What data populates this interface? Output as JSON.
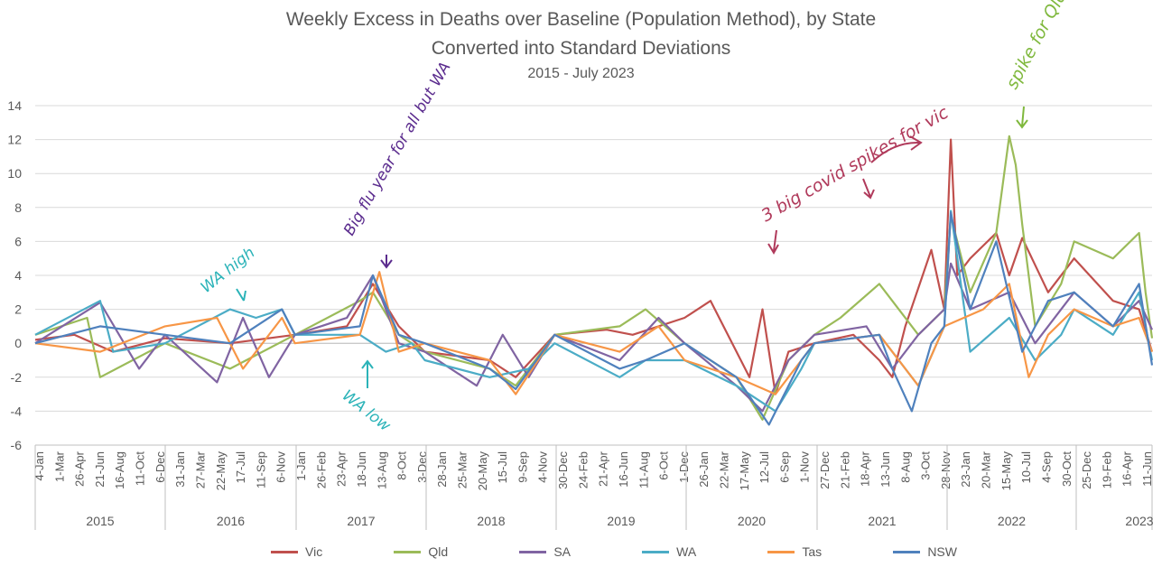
{
  "chart_data": {
    "type": "line",
    "title": "Weekly Excess in Deaths over Baseline (Population Method), by State",
    "subtitle": "Converted into Standard Deviations",
    "subtitle2": "2015 - July 2023",
    "ylim": [
      -6,
      14
    ],
    "yticks": [
      "14",
      "12",
      "10",
      "8",
      "6",
      "4",
      "2",
      "0",
      "-2",
      "-4",
      "-6"
    ],
    "grid": true,
    "legend_position": "bottom",
    "years": [
      "2015",
      "2016",
      "2017",
      "2018",
      "2019",
      "2020",
      "2021",
      "2022",
      "2023"
    ],
    "x_ticks": [
      "4-Jan",
      "1-Mar",
      "26-Apr",
      "21-Jun",
      "16-Aug",
      "11-Oct",
      "6-Dec",
      "31-Jan",
      "27-Mar",
      "22-May",
      "17-Jul",
      "11-Sep",
      "6-Nov",
      "1-Jan",
      "26-Feb",
      "23-Apr",
      "18-Jun",
      "13-Aug",
      "8-Oct",
      "3-Dec",
      "28-Jan",
      "25-Mar",
      "20-May",
      "15-Jul",
      "9-Sep",
      "4-Nov",
      "30-Dec",
      "24-Feb",
      "21-Apr",
      "16-Jun",
      "11-Aug",
      "6-Oct",
      "1-Dec",
      "26-Jan",
      "22-Mar",
      "17-May",
      "12-Jul",
      "6-Sep",
      "1-Nov",
      "27-Dec",
      "21-Feb",
      "18-Apr",
      "13-Jun",
      "8-Aug",
      "3-Oct",
      "28-Nov",
      "23-Jan",
      "20-Mar",
      "15-May",
      "10-Jul",
      "4-Sep",
      "30-Oct",
      "25-Dec",
      "19-Feb",
      "16-Apr",
      "11-Jun"
    ],
    "series": [
      {
        "name": "Vic",
        "color": "#C0504D",
        "x": [
          2015.0,
          2015.3,
          2015.6,
          2016.0,
          2016.5,
          2017.0,
          2017.4,
          2017.6,
          2017.8,
          2018.0,
          2018.5,
          2018.7,
          2019.0,
          2019.4,
          2019.6,
          2020.0,
          2020.2,
          2020.5,
          2020.6,
          2020.7,
          2020.8,
          2021.0,
          2021.3,
          2021.5,
          2021.6,
          2021.7,
          2021.9,
          2022.0,
          2022.05,
          2022.1,
          2022.2,
          2022.4,
          2022.5,
          2022.6,
          2022.8,
          2023.0,
          2023.3,
          2023.5,
          2023.6
        ],
        "values": [
          0.2,
          0.5,
          -0.5,
          0.3,
          0.0,
          0.5,
          1.0,
          3.5,
          1.0,
          -0.5,
          -1.0,
          -2.0,
          0.5,
          0.8,
          0.5,
          1.5,
          2.5,
          -2.0,
          2.0,
          -3.0,
          -0.5,
          0.0,
          0.5,
          -1.0,
          -2.0,
          1.0,
          5.5,
          2.0,
          12.0,
          4.0,
          5.0,
          6.5,
          4.0,
          6.2,
          3.0,
          5.0,
          2.5,
          2.0,
          -0.5
        ]
      },
      {
        "name": "Qld",
        "color": "#9BBB59",
        "x": [
          2015.0,
          2015.4,
          2015.5,
          2016.0,
          2016.5,
          2017.0,
          2017.5,
          2017.6,
          2017.8,
          2018.0,
          2018.5,
          2018.7,
          2019.0,
          2019.5,
          2019.7,
          2020.0,
          2020.4,
          2020.6,
          2020.8,
          2021.0,
          2021.2,
          2021.5,
          2021.8,
          2022.0,
          2022.05,
          2022.2,
          2022.4,
          2022.5,
          2022.55,
          2022.6,
          2022.7,
          2022.9,
          2023.0,
          2023.3,
          2023.5,
          2023.55,
          2023.6
        ],
        "values": [
          0.5,
          1.5,
          -2.0,
          0.0,
          -1.5,
          0.5,
          2.5,
          3.0,
          0.5,
          -0.5,
          -1.5,
          -2.5,
          0.5,
          1.0,
          2.0,
          0.0,
          -2.0,
          -4.5,
          -1.0,
          0.5,
          1.5,
          3.5,
          0.5,
          2.0,
          7.5,
          3.0,
          6.5,
          12.2,
          10.5,
          7.0,
          1.0,
          3.5,
          6.0,
          5.0,
          6.5,
          3.0,
          0.3
        ]
      },
      {
        "name": "SA",
        "color": "#8064A2",
        "x": [
          2015.0,
          2015.5,
          2015.8,
          2016.0,
          2016.4,
          2016.6,
          2016.8,
          2017.0,
          2017.4,
          2017.6,
          2017.8,
          2018.0,
          2018.4,
          2018.6,
          2018.8,
          2019.0,
          2019.5,
          2019.8,
          2020.0,
          2020.4,
          2020.6,
          2020.8,
          2021.0,
          2021.4,
          2021.6,
          2021.8,
          2022.0,
          2022.05,
          2022.2,
          2022.5,
          2022.7,
          2022.9,
          2023.0,
          2023.3,
          2023.5,
          2023.6
        ],
        "values": [
          0.0,
          2.4,
          -1.5,
          0.5,
          -2.3,
          1.5,
          -2.0,
          0.5,
          1.5,
          4.0,
          0.0,
          -0.5,
          -2.5,
          0.5,
          -2.0,
          0.5,
          -1.0,
          1.5,
          0.0,
          -2.5,
          -4.0,
          -1.0,
          0.5,
          1.0,
          -1.5,
          0.5,
          2.0,
          4.7,
          2.0,
          3.0,
          0.0,
          2.0,
          3.0,
          1.0,
          2.5,
          0.8
        ]
      },
      {
        "name": "WA",
        "color": "#4BACC6",
        "x": [
          2015.0,
          2015.5,
          2015.6,
          2016.0,
          2016.5,
          2016.7,
          2016.9,
          2017.0,
          2017.5,
          2017.7,
          2017.9,
          2018.0,
          2018.5,
          2018.8,
          2019.0,
          2019.5,
          2019.7,
          2020.0,
          2020.4,
          2020.7,
          2020.9,
          2021.0,
          2021.5,
          2021.8,
          2022.0,
          2022.05,
          2022.2,
          2022.5,
          2022.7,
          2022.9,
          2023.0,
          2023.3,
          2023.5,
          2023.6
        ],
        "values": [
          0.5,
          2.5,
          -0.5,
          0.0,
          2.0,
          1.5,
          2.0,
          0.5,
          0.5,
          -0.5,
          0.0,
          -1.0,
          -2.0,
          -1.5,
          0.0,
          -2.0,
          -1.0,
          -1.0,
          -2.5,
          -4.0,
          -1.5,
          0.0,
          0.5,
          -2.5,
          1.0,
          7.8,
          -0.5,
          1.5,
          -1.0,
          0.5,
          2.0,
          0.5,
          3.0,
          -1.0
        ]
      },
      {
        "name": "Tas",
        "color": "#F79646",
        "x": [
          2015.0,
          2015.5,
          2016.0,
          2016.4,
          2016.6,
          2016.9,
          2017.0,
          2017.5,
          2017.65,
          2017.8,
          2018.0,
          2018.5,
          2018.7,
          2019.0,
          2019.5,
          2019.8,
          2020.0,
          2020.4,
          2020.7,
          2020.9,
          2021.0,
          2021.5,
          2021.8,
          2022.0,
          2022.3,
          2022.5,
          2022.65,
          2022.8,
          2023.0,
          2023.3,
          2023.5,
          2023.6
        ],
        "values": [
          0.0,
          -0.5,
          1.0,
          1.5,
          -1.5,
          1.5,
          0.0,
          0.5,
          4.2,
          -0.5,
          0.0,
          -1.0,
          -3.0,
          0.5,
          -0.5,
          1.0,
          -1.0,
          -2.0,
          -3.0,
          -1.0,
          0.0,
          0.5,
          -2.5,
          1.0,
          2.0,
          3.5,
          -2.0,
          0.5,
          2.0,
          1.0,
          1.5,
          -0.5
        ]
      },
      {
        "name": "NSW",
        "color": "#4F81BD",
        "x": [
          2015.0,
          2015.5,
          2016.0,
          2016.5,
          2016.9,
          2017.0,
          2017.5,
          2017.6,
          2017.8,
          2018.0,
          2018.5,
          2018.7,
          2019.0,
          2019.5,
          2019.7,
          2020.0,
          2020.4,
          2020.65,
          2020.9,
          2021.0,
          2021.5,
          2021.6,
          2021.75,
          2021.9,
          2022.0,
          2022.05,
          2022.2,
          2022.4,
          2022.6,
          2022.8,
          2023.0,
          2023.3,
          2023.5,
          2023.6
        ],
        "values": [
          0.0,
          1.0,
          0.5,
          0.0,
          2.0,
          0.5,
          1.0,
          4.0,
          0.5,
          0.0,
          -1.5,
          -2.7,
          0.5,
          -1.5,
          -1.0,
          0.0,
          -2.0,
          -4.8,
          -1.0,
          0.0,
          0.5,
          -1.5,
          -4.0,
          0.0,
          1.0,
          7.7,
          2.0,
          6.0,
          -0.5,
          2.5,
          3.0,
          1.0,
          3.5,
          -1.3
        ]
      }
    ],
    "annotations": [
      {
        "id": "wa-high",
        "text": "WA high",
        "color": "#2BB3B8"
      },
      {
        "id": "wa-low",
        "text": "WA low",
        "color": "#2BB3B8"
      },
      {
        "id": "flu",
        "text": "Big flu year for all but WA",
        "color": "#5B2C8E"
      },
      {
        "id": "vic-covid",
        "text": "3 big covid spikes for vic",
        "color": "#B03A5B"
      },
      {
        "id": "qld-spike",
        "text": "spike for Qld",
        "color": "#7FB83D"
      }
    ]
  }
}
